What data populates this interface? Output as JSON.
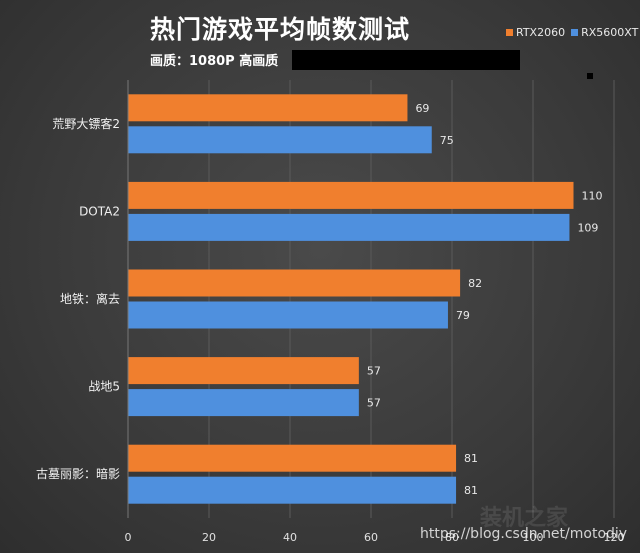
{
  "chart_data": {
    "type": "bar",
    "orientation": "horizontal",
    "title": "热门游戏平均帧数测试",
    "subtitle": "画质：1080P 高画质",
    "categories": [
      "荒野大镖客2",
      "DOTA2",
      "地铁：离去",
      "战地5",
      "古墓丽影：暗影"
    ],
    "series": [
      {
        "name": "RTX2060",
        "color": "#f07f2e",
        "values": [
          69,
          110,
          82,
          57,
          81
        ]
      },
      {
        "name": "RX5600XT",
        "color": "#4f90de",
        "values": [
          75,
          109,
          79,
          57,
          81
        ]
      }
    ],
    "xlim": [
      0,
      120
    ],
    "xticks": [
      0,
      20,
      40,
      60,
      80,
      100,
      120
    ],
    "grid": true,
    "legend_position": "top-right"
  },
  "watermark": "https://blog.csdn.net/motodiy",
  "watermark_mark": "装机之家"
}
